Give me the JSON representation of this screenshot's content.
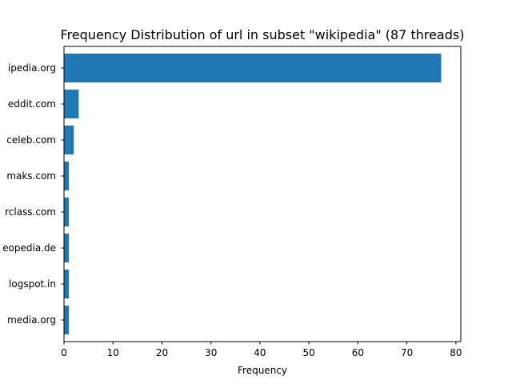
{
  "chart_data": {
    "type": "bar",
    "orientation": "horizontal",
    "title": "Frequency Distribution of url in subset \"wikipedia\" (87 threads)",
    "xlabel": "Frequency",
    "ylabel": "",
    "categories": [
      "ipedia.org",
      "eddit.com",
      "celeb.com",
      "maks.com",
      "rclass.com",
      "eopedia.de",
      "logspot.in",
      "media.org"
    ],
    "values": [
      77,
      3,
      2,
      1,
      1,
      1,
      1,
      1
    ],
    "xlim": [
      0,
      81
    ],
    "xticks": [
      0,
      10,
      20,
      30,
      40,
      50,
      60,
      70,
      80
    ],
    "grid": false,
    "bar_color": "#1f77b4"
  }
}
